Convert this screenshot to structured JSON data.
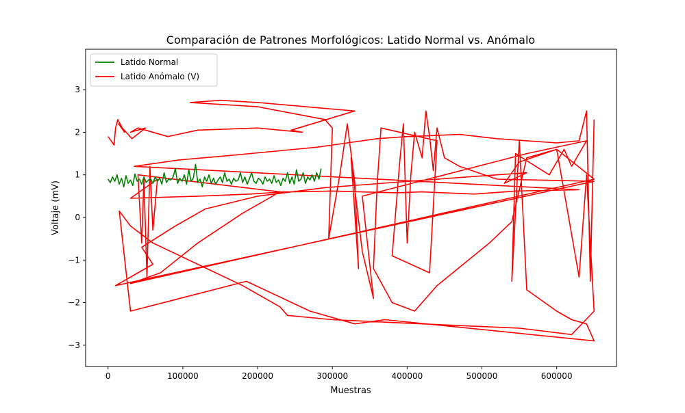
{
  "chart_data": {
    "type": "line",
    "title": "Comparación de Patrones Morfológicos: Latido Normal vs. Anómalo",
    "xlabel": "Muestras",
    "ylabel": "Voltaje (mV)",
    "xlim": [
      -30000,
      680000
    ],
    "ylim": [
      -3.5,
      3.95
    ],
    "xticks": [
      0,
      100000,
      200000,
      300000,
      400000,
      500000,
      600000
    ],
    "xtick_labels": [
      "0",
      "100000",
      "200000",
      "300000",
      "400000",
      "500000",
      "600000"
    ],
    "yticks": [
      -3,
      -2,
      -1,
      0,
      1,
      2,
      3
    ],
    "ytick_labels": [
      "−3",
      "−2",
      "−1",
      "0",
      "1",
      "2",
      "3"
    ],
    "grid": false,
    "legend_position": "top-left",
    "series": [
      {
        "name": "Latido Normal",
        "color": "#008000",
        "x": [
          0,
          3000,
          6000,
          9000,
          12000,
          15000,
          18000,
          21000,
          24000,
          27000,
          30000,
          33000,
          36000,
          39000,
          42000,
          45000,
          48000,
          51000,
          54000,
          57000,
          60000,
          63000,
          66000,
          69000,
          72000,
          75000,
          78000,
          81000,
          84000,
          87000,
          90000,
          93000,
          96000,
          99000,
          102000,
          105000,
          108000,
          111000,
          114000,
          117000,
          120000,
          123000,
          126000,
          129000,
          132000,
          135000,
          138000,
          141000,
          144000,
          147000,
          150000,
          153000,
          156000,
          159000,
          162000,
          165000,
          168000,
          171000,
          174000,
          177000,
          180000,
          183000,
          186000,
          189000,
          192000,
          195000,
          198000,
          201000,
          204000,
          207000,
          210000,
          213000,
          216000,
          219000,
          222000,
          225000,
          228000,
          231000,
          234000,
          237000,
          240000,
          243000,
          246000,
          249000,
          252000,
          255000,
          258000,
          261000,
          264000,
          267000,
          270000,
          273000,
          276000,
          279000,
          282000,
          285000
        ],
        "y": [
          0.9,
          0.82,
          0.95,
          0.85,
          1.0,
          0.78,
          0.92,
          0.72,
          0.98,
          0.8,
          0.88,
          0.75,
          1.02,
          0.85,
          0.9,
          0.78,
          0.95,
          0.82,
          0.88,
          0.9,
          0.8,
          0.95,
          0.85,
          0.92,
          0.78,
          1.05,
          0.82,
          0.9,
          0.88,
          0.95,
          1.15,
          0.8,
          0.92,
          0.85,
          1.0,
          0.78,
          1.12,
          0.85,
          0.92,
          1.25,
          0.82,
          0.9,
          0.72,
          0.95,
          0.85,
          1.0,
          0.8,
          0.92,
          0.78,
          0.88,
          0.95,
          0.82,
          1.05,
          0.85,
          0.9,
          0.78,
          0.92,
          0.85,
          0.88,
          1.05,
          0.82,
          0.95,
          0.78,
          0.9,
          1.05,
          0.85,
          0.8,
          0.92,
          0.88,
          0.78,
          0.95,
          0.85,
          0.9,
          0.8,
          0.98,
          0.82,
          0.88,
          0.75,
          0.92,
          0.85,
          1.05,
          0.8,
          0.95,
          0.78,
          1.12,
          0.85,
          0.9,
          1.05,
          0.8,
          0.95,
          0.88,
          1.0,
          0.85,
          1.05,
          0.9,
          1.15
        ]
      },
      {
        "name": "Latido Anómalo (V)",
        "color": "#ff0000",
        "x": [
          0,
          8000,
          10000,
          13000,
          16000,
          22000,
          14000,
          32000,
          50000,
          30000,
          40000,
          80000,
          120000,
          200000,
          260000,
          245000,
          330000,
          200000,
          150000,
          110000,
          200000,
          290000,
          300000,
          295000,
          310000,
          320000,
          330000,
          335000,
          325000,
          340000,
          355000,
          340000,
          560000,
          640000,
          620000,
          610000,
          590000,
          545000,
          540000,
          550000,
          560000,
          600000,
          620000,
          640000,
          650000,
          370000,
          330000,
          270000,
          185000,
          30000,
          15000,
          30000,
          60000,
          120000,
          180000,
          230000,
          240000,
          300000,
          420000,
          550000,
          620000,
          650000,
          640000,
          630000,
          600000,
          560000,
          540000,
          510000,
          440000,
          410000,
          380000,
          355000,
          360000,
          365000,
          440000,
          430000,
          380000,
          390000,
          395000,
          400000,
          405000,
          410000,
          420000,
          425000,
          430000,
          435000,
          440000,
          450000,
          470000,
          520000,
          650000,
          10000,
          40000,
          60000,
          45000,
          90000,
          130000,
          200000,
          290000,
          480000,
          560000,
          530000,
          550000,
          600000,
          650000,
          30000,
          70000,
          120000,
          180000,
          230000,
          40000,
          45000,
          48000,
          52000,
          56000,
          60000,
          66000,
          30000,
          120000,
          190000,
          235000,
          245000,
          300000,
          385000,
          420000,
          490000,
          545000,
          630000,
          35000,
          95000,
          160000,
          220000,
          280000,
          320000,
          360000,
          400000,
          470000,
          520000,
          600000,
          630000,
          640000,
          645000,
          650000
        ],
        "y": [
          1.9,
          1.7,
          2.1,
          2.3,
          2.2,
          2.0,
          2.2,
          1.85,
          2.1,
          2.0,
          2.1,
          1.9,
          2.05,
          2.1,
          2.0,
          2.05,
          2.5,
          2.7,
          2.75,
          2.7,
          2.6,
          2.3,
          2.1,
          -0.5,
          1.0,
          2.2,
          0.8,
          -1.2,
          1.4,
          -0.8,
          -1.9,
          0.5,
          1.5,
          1.8,
          1.2,
          1.6,
          1.0,
          1.5,
          -1.5,
          1.8,
          -1.7,
          -2.2,
          -2.4,
          -2.5,
          -2.9,
          -2.4,
          -2.5,
          -2.2,
          -1.5,
          -2.2,
          0.15,
          -0.2,
          -0.6,
          -1.1,
          -1.6,
          -2.1,
          -2.3,
          -2.4,
          -2.5,
          -2.6,
          -2.75,
          -2.2,
          1.0,
          -1.4,
          1.6,
          1.4,
          -0.1,
          -0.6,
          -1.6,
          -2.2,
          -2.0,
          -1.2,
          0.8,
          2.1,
          1.8,
          -1.3,
          -0.9,
          1.3,
          2.2,
          -0.6,
          1.0,
          2.0,
          1.4,
          2.5,
          1.9,
          1.1,
          2.1,
          1.4,
          1.2,
          0.9,
          0.85,
          -1.6,
          -1.3,
          -1.1,
          -0.7,
          -0.2,
          0.2,
          0.5,
          0.7,
          0.95,
          1.05,
          0.8,
          1.3,
          1.6,
          0.9,
          -1.55,
          -1.3,
          -0.6,
          0.1,
          0.6,
          1.0,
          -0.6,
          0.9,
          -1.4,
          1.2,
          -0.3,
          0.9,
          0.45,
          0.5,
          0.55,
          0.6,
          0.6,
          0.62,
          0.58,
          0.6,
          0.55,
          0.62,
          0.65,
          1.2,
          1.35,
          1.45,
          1.55,
          1.65,
          1.75,
          1.85,
          1.9,
          1.95,
          1.85,
          1.75,
          1.8,
          2.5,
          -1.5,
          2.3
        ]
      }
    ]
  }
}
